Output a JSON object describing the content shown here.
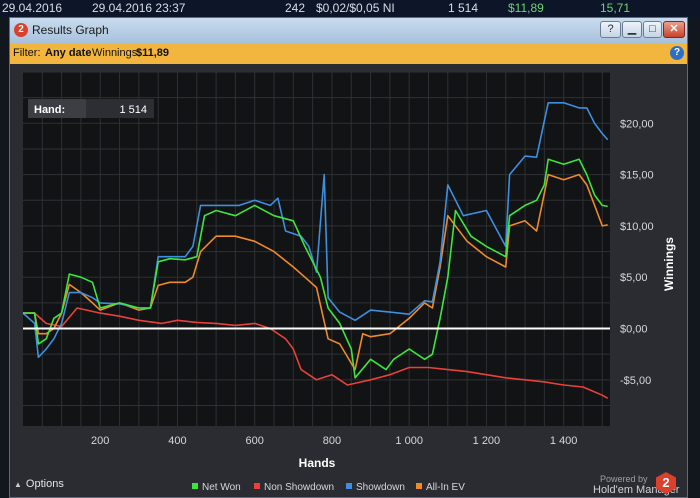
{
  "topbar": {
    "date_start": "29.04.2016",
    "date_end": "29.04.2016 23:37",
    "hands": "242",
    "stakes": "$0,02/$0,05 NI",
    "count": "1 514",
    "winnings": "$11,89",
    "value": "15,71"
  },
  "window": {
    "icon": "2",
    "title": "Results Graph",
    "buttons": {
      "help": "?",
      "minimize": "▁",
      "maximize": "□",
      "close": "✕"
    }
  },
  "filter": {
    "label": "Filter:",
    "date_value": "Any date",
    "winnings_label": "Winnings:",
    "winnings_value": "$11,89"
  },
  "hand_box": {
    "label": "Hand:",
    "value": "1 514"
  },
  "footer": {
    "options_label": "Options",
    "powered_by": "Powered by",
    "brand": "Hold'em Manager",
    "brand_logo": "2"
  },
  "colors": {
    "net_won": "#3de63d",
    "non_showdown": "#e8413b",
    "showdown": "#3d8fe0",
    "all_in_ev": "#ef8a2a",
    "zero_line": "#ffffff",
    "filter_bar": "#f2b53d"
  },
  "chart_data": {
    "type": "line",
    "xlabel": "Hands",
    "ylabel": "Winnings",
    "xlim": [
      0,
      1520
    ],
    "ylim": [
      -9.5,
      25
    ],
    "x_ticks": [
      200,
      400,
      600,
      800,
      1000,
      1200,
      1400
    ],
    "x_tick_labels": [
      "200",
      "400",
      "600",
      "800",
      "1 000",
      "1 200",
      "1 400"
    ],
    "y_ticks": [
      20,
      15,
      10,
      5,
      0,
      -5
    ],
    "y_tick_labels": [
      "$20,00",
      "$15,00",
      "$10,00",
      "$5,00",
      "$0,00",
      "-$5,00"
    ],
    "grid": true,
    "legend_position": "bottom",
    "series": [
      {
        "name": "Net Won",
        "color": "#3de63d",
        "points": [
          [
            0,
            1.5
          ],
          [
            30,
            1.5
          ],
          [
            40,
            -1.5
          ],
          [
            60,
            -1
          ],
          [
            80,
            1
          ],
          [
            100,
            1.5
          ],
          [
            120,
            5.3
          ],
          [
            150,
            5
          ],
          [
            180,
            4.5
          ],
          [
            200,
            2
          ],
          [
            250,
            2.5
          ],
          [
            300,
            2
          ],
          [
            330,
            2
          ],
          [
            350,
            6.5
          ],
          [
            380,
            6.8
          ],
          [
            420,
            6.7
          ],
          [
            450,
            7
          ],
          [
            470,
            11
          ],
          [
            500,
            11.5
          ],
          [
            550,
            11
          ],
          [
            600,
            12
          ],
          [
            650,
            11
          ],
          [
            700,
            10.5
          ],
          [
            730,
            8
          ],
          [
            770,
            5
          ],
          [
            790,
            2
          ],
          [
            820,
            0.5
          ],
          [
            850,
            -2
          ],
          [
            860,
            -4.8
          ],
          [
            900,
            -3
          ],
          [
            920,
            -3.5
          ],
          [
            940,
            -4
          ],
          [
            960,
            -3
          ],
          [
            1000,
            -2
          ],
          [
            1040,
            -3
          ],
          [
            1060,
            -2.5
          ],
          [
            1080,
            1
          ],
          [
            1100,
            5
          ],
          [
            1120,
            11.5
          ],
          [
            1160,
            9
          ],
          [
            1200,
            8
          ],
          [
            1250,
            7
          ],
          [
            1260,
            11
          ],
          [
            1300,
            12
          ],
          [
            1330,
            12.5
          ],
          [
            1350,
            14
          ],
          [
            1360,
            16.5
          ],
          [
            1400,
            16
          ],
          [
            1440,
            16.5
          ],
          [
            1460,
            15
          ],
          [
            1480,
            13
          ],
          [
            1500,
            12
          ],
          [
            1514,
            11.9
          ]
        ]
      },
      {
        "name": "Non Showdown",
        "color": "#e8413b",
        "points": [
          [
            0,
            1.5
          ],
          [
            30,
            1.5
          ],
          [
            60,
            0.5
          ],
          [
            100,
            0.2
          ],
          [
            140,
            2
          ],
          [
            200,
            1.5
          ],
          [
            250,
            1.2
          ],
          [
            300,
            0.8
          ],
          [
            360,
            0.5
          ],
          [
            400,
            0.8
          ],
          [
            450,
            0.6
          ],
          [
            500,
            0.5
          ],
          [
            550,
            0.3
          ],
          [
            600,
            0.5
          ],
          [
            640,
            0
          ],
          [
            680,
            -1
          ],
          [
            700,
            -2
          ],
          [
            720,
            -4
          ],
          [
            760,
            -5
          ],
          [
            800,
            -4.5
          ],
          [
            840,
            -5.5
          ],
          [
            900,
            -5
          ],
          [
            950,
            -4.5
          ],
          [
            1000,
            -3.8
          ],
          [
            1050,
            -3.8
          ],
          [
            1100,
            -4
          ],
          [
            1150,
            -4.2
          ],
          [
            1200,
            -4.5
          ],
          [
            1250,
            -4.8
          ],
          [
            1300,
            -5
          ],
          [
            1350,
            -5.2
          ],
          [
            1400,
            -5.5
          ],
          [
            1450,
            -5.7
          ],
          [
            1500,
            -6.5
          ],
          [
            1514,
            -6.8
          ]
        ]
      },
      {
        "name": "Showdown",
        "color": "#3d8fe0",
        "points": [
          [
            0,
            1.5
          ],
          [
            30,
            0.5
          ],
          [
            40,
            -2.8
          ],
          [
            60,
            -2
          ],
          [
            80,
            -1
          ],
          [
            100,
            0.5
          ],
          [
            120,
            3.5
          ],
          [
            150,
            3.5
          ],
          [
            180,
            3
          ],
          [
            200,
            2.5
          ],
          [
            250,
            2.4
          ],
          [
            300,
            2
          ],
          [
            330,
            2
          ],
          [
            350,
            7
          ],
          [
            380,
            7
          ],
          [
            420,
            7
          ],
          [
            440,
            8
          ],
          [
            460,
            12
          ],
          [
            520,
            12
          ],
          [
            560,
            12
          ],
          [
            600,
            12.5
          ],
          [
            640,
            12
          ],
          [
            660,
            12.7
          ],
          [
            680,
            9.5
          ],
          [
            720,
            9
          ],
          [
            740,
            8
          ],
          [
            760,
            5.5
          ],
          [
            780,
            15
          ],
          [
            790,
            3
          ],
          [
            820,
            1.6
          ],
          [
            860,
            0.8
          ],
          [
            900,
            1.8
          ],
          [
            950,
            1.6
          ],
          [
            1000,
            1.4
          ],
          [
            1040,
            2.7
          ],
          [
            1060,
            2.6
          ],
          [
            1080,
            6.5
          ],
          [
            1100,
            14
          ],
          [
            1140,
            11
          ],
          [
            1200,
            11.5
          ],
          [
            1250,
            8
          ],
          [
            1260,
            15
          ],
          [
            1300,
            16.8
          ],
          [
            1330,
            16.7
          ],
          [
            1360,
            22
          ],
          [
            1400,
            22
          ],
          [
            1440,
            21.5
          ],
          [
            1460,
            21.5
          ],
          [
            1480,
            20
          ],
          [
            1500,
            19
          ],
          [
            1514,
            18.4
          ]
        ]
      },
      {
        "name": "All-In EV",
        "color": "#ef8a2a",
        "points": [
          [
            0,
            1.5
          ],
          [
            30,
            1.5
          ],
          [
            40,
            -0.5
          ],
          [
            60,
            -0.5
          ],
          [
            80,
            0
          ],
          [
            100,
            1.5
          ],
          [
            120,
            4.3
          ],
          [
            150,
            3.5
          ],
          [
            180,
            2.5
          ],
          [
            200,
            1.8
          ],
          [
            250,
            2.5
          ],
          [
            300,
            1.8
          ],
          [
            330,
            2
          ],
          [
            350,
            4.2
          ],
          [
            380,
            4.5
          ],
          [
            420,
            4.5
          ],
          [
            440,
            5
          ],
          [
            460,
            7.5
          ],
          [
            500,
            9
          ],
          [
            550,
            9
          ],
          [
            600,
            8.5
          ],
          [
            650,
            7.5
          ],
          [
            700,
            6
          ],
          [
            730,
            5
          ],
          [
            760,
            4
          ],
          [
            790,
            -1
          ],
          [
            820,
            -1.5
          ],
          [
            860,
            -4
          ],
          [
            880,
            -0.5
          ],
          [
            900,
            -0.8
          ],
          [
            950,
            -0.5
          ],
          [
            1000,
            1
          ],
          [
            1040,
            2.5
          ],
          [
            1060,
            2
          ],
          [
            1080,
            6
          ],
          [
            1100,
            11
          ],
          [
            1150,
            8.5
          ],
          [
            1200,
            7
          ],
          [
            1250,
            6
          ],
          [
            1260,
            10
          ],
          [
            1300,
            10.5
          ],
          [
            1330,
            9.5
          ],
          [
            1360,
            15
          ],
          [
            1400,
            14.5
          ],
          [
            1440,
            15
          ],
          [
            1460,
            14
          ],
          [
            1480,
            12
          ],
          [
            1500,
            10
          ],
          [
            1514,
            10.1
          ]
        ]
      }
    ]
  }
}
